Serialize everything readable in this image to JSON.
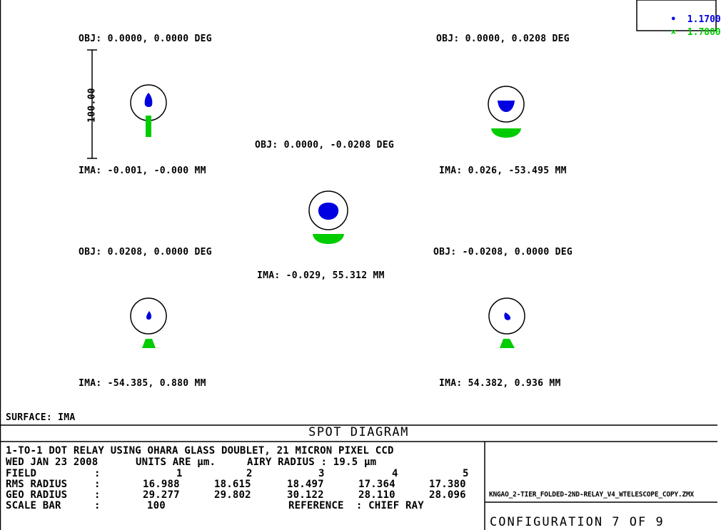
{
  "legend": [
    {
      "marker": "•",
      "value": "1.1700",
      "color": "#0000e0"
    },
    {
      "marker": "×",
      "value": "1.7800",
      "color": "#00cc00"
    }
  ],
  "scale_bar_label": "100.00",
  "spots": [
    {
      "obj": "OBJ: 0.0000, 0.0000 DEG",
      "ima": "IMA: -0.001, -0.000 MM"
    },
    {
      "obj": "OBJ: 0.0000, 0.0208 DEG",
      "ima": "IMA: 0.026, -53.495 MM"
    },
    {
      "obj": "OBJ: 0.0000, -0.0208 DEG",
      "ima": "IMA: -0.029, 55.312 MM"
    },
    {
      "obj": "OBJ: 0.0208, 0.0000 DEG",
      "ima": "IMA: -54.385, 0.880 MM"
    },
    {
      "obj": "OBJ: -0.0208, 0.0000 DEG",
      "ima": "IMA: 54.382, 0.936 MM"
    }
  ],
  "surface": "SURFACE: IMA",
  "title": "SPOT DIAGRAM",
  "info": {
    "line1": "1-TO-1 DOT RELAY USING OHARA GLASS DOUBLET, 21 MICRON PIXEL CCD",
    "date": "WED JAN 23 2008",
    "units": "UNITS ARE µm.",
    "airy": "AIRY RADIUS : 19.5 µm",
    "field_label": "FIELD",
    "rms_label": "RMS RADIUS",
    "geo_label": "GEO RADIUS",
    "scale_label": "SCALE BAR",
    "colon": ":",
    "fields": [
      "1",
      "2",
      "3",
      "4",
      "5"
    ],
    "rms": [
      "16.988",
      "18.615",
      "18.497",
      "17.364",
      "17.380"
    ],
    "geo": [
      "29.277",
      "29.802",
      "30.122",
      "28.110",
      "28.096"
    ],
    "scale_value": "100",
    "reference": "REFERENCE  : CHIEF RAY"
  },
  "filename": "KNGAO_2-TIER_FOLDED-2ND-RELAY_V4_WTELESCOPE_COPY.ZMX",
  "configuration": "CONFIGURATION 7 OF 9"
}
